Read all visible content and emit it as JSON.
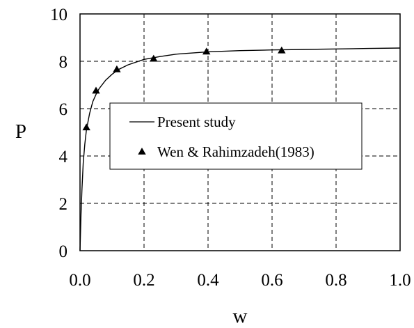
{
  "chart_data": {
    "type": "line",
    "xlabel": "w",
    "ylabel": "P",
    "xlim": [
      0,
      1.0
    ],
    "ylim": [
      0,
      10
    ],
    "xticks": [
      "0.0",
      "0.2",
      "0.4",
      "0.6",
      "0.8",
      "1.0"
    ],
    "yticks": [
      "0",
      "2",
      "4",
      "6",
      "8",
      "10"
    ],
    "grid": true,
    "grid_style": "dashed",
    "legend_position": "center",
    "series": [
      {
        "name": "Present study",
        "style": "line",
        "color": "#000000",
        "x": [
          0.0,
          0.003,
          0.006,
          0.01,
          0.015,
          0.02,
          0.03,
          0.04,
          0.05,
          0.06,
          0.08,
          0.1,
          0.12,
          0.15,
          0.2,
          0.25,
          0.3,
          0.4,
          0.5,
          0.6,
          0.7,
          0.8,
          0.9,
          1.0
        ],
        "y": [
          0.0,
          1.5,
          2.6,
          3.7,
          4.5,
          5.1,
          5.8,
          6.3,
          6.6,
          6.85,
          7.2,
          7.45,
          7.65,
          7.85,
          8.08,
          8.2,
          8.3,
          8.4,
          8.45,
          8.48,
          8.5,
          8.52,
          8.54,
          8.56
        ]
      },
      {
        "name": "Wen & Rahimzadeh(1983)",
        "style": "marker",
        "marker": "triangle",
        "color": "#000000",
        "x": [
          0.02,
          0.05,
          0.115,
          0.23,
          0.395,
          0.63
        ],
        "y": [
          5.2,
          6.75,
          7.65,
          8.1,
          8.4,
          8.45
        ]
      }
    ]
  }
}
